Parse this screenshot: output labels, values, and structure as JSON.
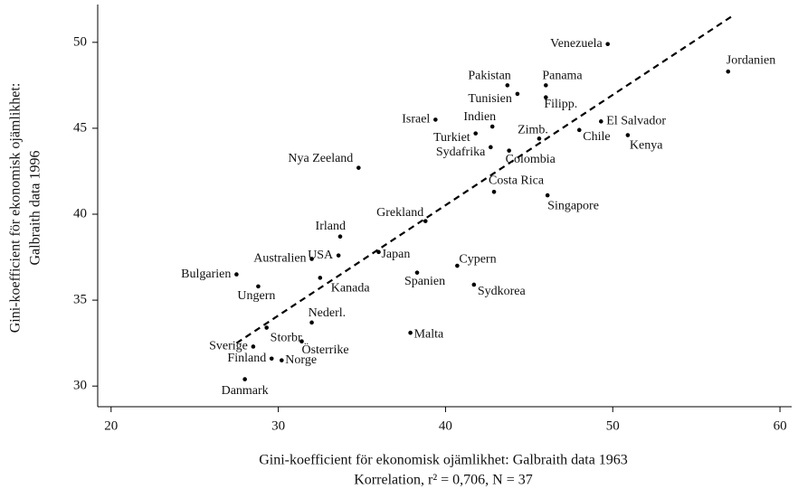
{
  "chart_data": {
    "type": "scatter",
    "x_label": "Gini-koefficient för ekonomisk ojämlikhet: Galbraith data 1963",
    "x_label_2": "Korrelation, r² = 0,706, N = 37",
    "y_label": "Gini-koefficient för ekonomisk ojämlikhet:",
    "y_label_2": "Galbraith data 1996",
    "xlim": [
      19.2,
      60.7
    ],
    "ylim": [
      28.8,
      52.2
    ],
    "xticks": [
      20,
      30,
      40,
      50,
      60
    ],
    "yticks": [
      30,
      35,
      40,
      45,
      50
    ],
    "color": "#000000",
    "labels": [
      "Venezuela",
      "Jordanien",
      "Pakistan",
      "Panama",
      "Tunisien",
      "Filipp.",
      "Israel",
      "Indien",
      "Turkiet",
      "Zimb.",
      "El Salvador",
      "Chile",
      "Kenya",
      "Sydafrika",
      "Colombia",
      "Nya Zeeland",
      "Costa Rica",
      "Singapore",
      "Grekland",
      "Irland",
      "Australien",
      "USA",
      "Japan",
      "Bulgarien",
      "Ungern",
      "Kanada",
      "Spanien",
      "Cypern",
      "Sydkorea",
      "Nederl.",
      "Storbr.",
      "Sverige",
      "Österrike",
      "Malta",
      "Finland",
      "Norge",
      "Danmark"
    ],
    "x": [
      49.7,
      56.9,
      43.7,
      46.0,
      44.3,
      46.0,
      39.4,
      42.8,
      41.8,
      45.6,
      49.3,
      48.0,
      50.9,
      42.7,
      43.8,
      34.8,
      42.9,
      46.1,
      38.8,
      33.7,
      32.0,
      33.6,
      36.0,
      27.5,
      28.8,
      32.5,
      38.3,
      40.7,
      41.7,
      32.0,
      29.3,
      28.5,
      31.4,
      37.9,
      29.6,
      30.2,
      28.0
    ],
    "values": [
      49.9,
      48.3,
      47.5,
      47.5,
      47.0,
      46.8,
      45.5,
      45.1,
      44.7,
      44.4,
      45.4,
      44.9,
      44.6,
      43.9,
      43.7,
      42.7,
      41.3,
      41.1,
      39.6,
      38.7,
      37.4,
      37.6,
      37.8,
      36.5,
      35.8,
      36.3,
      36.6,
      37.0,
      35.9,
      33.7,
      33.4,
      32.3,
      32.6,
      33.1,
      31.6,
      31.5,
      30.4
    ],
    "trend_line": {
      "x": [
        27.5,
        57.1
      ],
      "y": [
        32.5,
        51.5
      ]
    }
  }
}
